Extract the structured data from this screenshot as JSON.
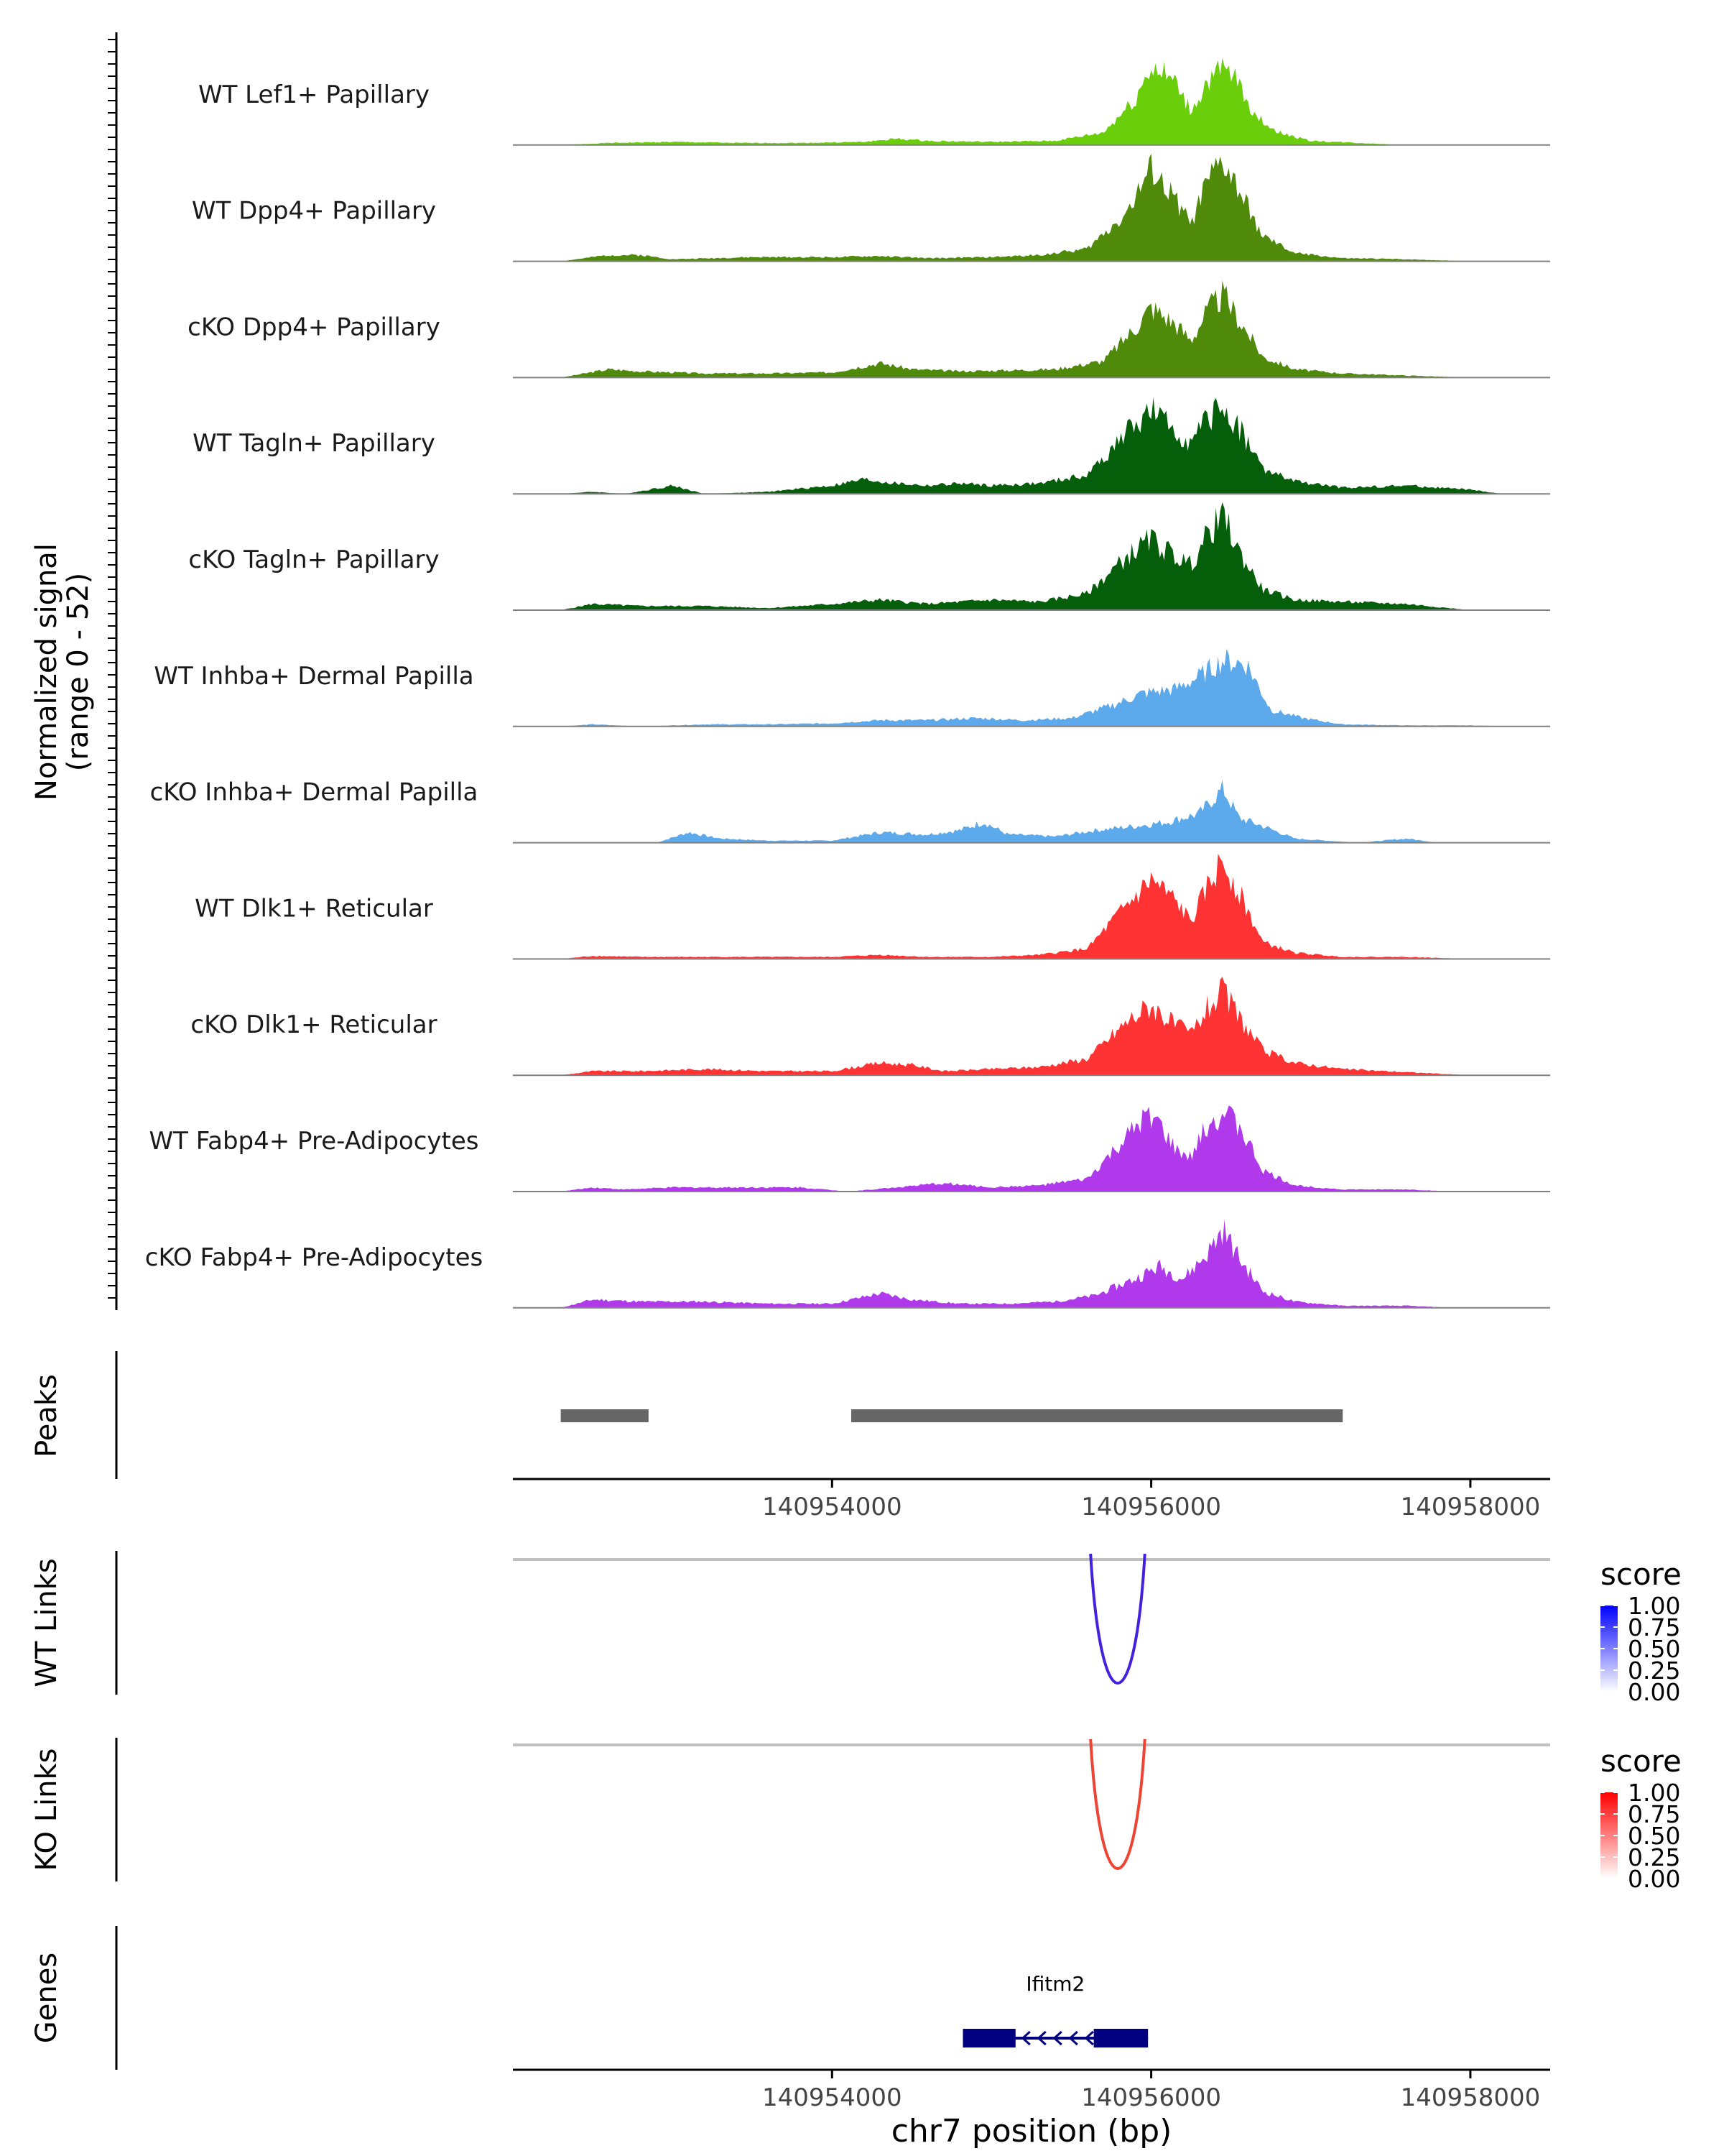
{
  "chart_data": {
    "type": "area",
    "chromosome": "chr7",
    "x_range_bp": [
      140952000,
      140958500
    ],
    "signal_range": [
      0,
      52
    ],
    "coverage_ylabel": [
      "Normalized signal",
      "(range 0 - 52)"
    ],
    "xlabel": "chr7 position (bp)",
    "x_ticks": [
      "140954000",
      "140956000",
      "140958000"
    ],
    "x_tick_values": [
      140954000,
      140956000,
      140958000
    ],
    "tracks": [
      {
        "name": "WT Lef1+ Papillary",
        "color": "#6ACF0A",
        "profile": [
          [
            140952300,
            0
          ],
          [
            140952600,
            1
          ],
          [
            140953000,
            1.5
          ],
          [
            140953400,
            1
          ],
          [
            140953800,
            1
          ],
          [
            140954200,
            1.5
          ],
          [
            140954400,
            3
          ],
          [
            140954600,
            2
          ],
          [
            140955000,
            1.5
          ],
          [
            140955400,
            2
          ],
          [
            140955700,
            6
          ],
          [
            140955900,
            22
          ],
          [
            140956000,
            38
          ],
          [
            140956150,
            30
          ],
          [
            140956250,
            16
          ],
          [
            140956350,
            30
          ],
          [
            140956450,
            36
          ],
          [
            140956550,
            30
          ],
          [
            140956650,
            14
          ],
          [
            140956800,
            6
          ],
          [
            140957000,
            2
          ],
          [
            140957300,
            1
          ],
          [
            140957600,
            0
          ]
        ]
      },
      {
        "name": "WT Dpp4+ Papillary",
        "color": "#4F8A0B",
        "profile": [
          [
            140952300,
            0
          ],
          [
            140952600,
            3
          ],
          [
            140952800,
            3
          ],
          [
            140953000,
            1
          ],
          [
            140953500,
            2
          ],
          [
            140954000,
            2
          ],
          [
            140954300,
            2.5
          ],
          [
            140954600,
            1.5
          ],
          [
            140955000,
            2
          ],
          [
            140955300,
            3
          ],
          [
            140955600,
            6
          ],
          [
            140955850,
            24
          ],
          [
            140956000,
            44
          ],
          [
            140956150,
            30
          ],
          [
            140956250,
            18
          ],
          [
            140956350,
            38
          ],
          [
            140956450,
            48
          ],
          [
            140956550,
            34
          ],
          [
            140956700,
            12
          ],
          [
            140956900,
            4
          ],
          [
            140957200,
            1.5
          ],
          [
            140957600,
            1
          ],
          [
            140958000,
            0
          ]
        ]
      },
      {
        "name": "cKO Dpp4+ Papillary",
        "color": "#4F8A0B",
        "profile": [
          [
            140952300,
            0
          ],
          [
            140952600,
            4
          ],
          [
            140952800,
            3
          ],
          [
            140953200,
            2
          ],
          [
            140953600,
            2
          ],
          [
            140954000,
            2.5
          ],
          [
            140954300,
            7
          ],
          [
            140954500,
            4
          ],
          [
            140954800,
            3
          ],
          [
            140955100,
            3.5
          ],
          [
            140955400,
            4
          ],
          [
            140955700,
            8
          ],
          [
            140955900,
            24
          ],
          [
            140956000,
            34
          ],
          [
            140956150,
            26
          ],
          [
            140956250,
            18
          ],
          [
            140956350,
            32
          ],
          [
            140956450,
            40
          ],
          [
            140956550,
            28
          ],
          [
            140956700,
            10
          ],
          [
            140956900,
            4
          ],
          [
            140957200,
            2
          ],
          [
            140957600,
            1
          ],
          [
            140958000,
            0
          ]
        ]
      },
      {
        "name": "WT Tagln+ Papillary",
        "color": "#055F0A",
        "profile": [
          [
            140952300,
            0
          ],
          [
            140952500,
            1
          ],
          [
            140952700,
            0
          ],
          [
            140953000,
            4
          ],
          [
            140953200,
            0
          ],
          [
            140953600,
            1
          ],
          [
            140954000,
            4
          ],
          [
            140954200,
            7
          ],
          [
            140954400,
            5
          ],
          [
            140954600,
            4
          ],
          [
            140954800,
            5
          ],
          [
            140955000,
            4
          ],
          [
            140955300,
            5
          ],
          [
            140955600,
            9
          ],
          [
            140955850,
            30
          ],
          [
            140956000,
            40
          ],
          [
            140956150,
            30
          ],
          [
            140956250,
            24
          ],
          [
            140956350,
            36
          ],
          [
            140956450,
            42
          ],
          [
            140956550,
            32
          ],
          [
            140956700,
            12
          ],
          [
            140956900,
            6
          ],
          [
            140957200,
            3
          ],
          [
            140957600,
            4
          ],
          [
            140958000,
            2
          ],
          [
            140958200,
            0
          ]
        ]
      },
      {
        "name": "cKO Tagln+ Papillary",
        "color": "#055F0A",
        "profile": [
          [
            140952300,
            0
          ],
          [
            140952500,
            3
          ],
          [
            140952800,
            2
          ],
          [
            140953200,
            2
          ],
          [
            140953600,
            1
          ],
          [
            140954000,
            3
          ],
          [
            140954300,
            5
          ],
          [
            140954600,
            3
          ],
          [
            140955000,
            5
          ],
          [
            140955300,
            4
          ],
          [
            140955600,
            8
          ],
          [
            140955850,
            26
          ],
          [
            140956000,
            34
          ],
          [
            140956150,
            26
          ],
          [
            140956250,
            22
          ],
          [
            140956350,
            36
          ],
          [
            140956450,
            46
          ],
          [
            140956550,
            28
          ],
          [
            140956700,
            10
          ],
          [
            140956900,
            5
          ],
          [
            140957200,
            4
          ],
          [
            140957600,
            3
          ],
          [
            140958000,
            0
          ]
        ]
      },
      {
        "name": "WT Inhba+ Dermal Papilla",
        "color": "#5CAAEB",
        "profile": [
          [
            140952300,
            0
          ],
          [
            140952500,
            1
          ],
          [
            140952800,
            0
          ],
          [
            140953200,
            1
          ],
          [
            140953600,
            1
          ],
          [
            140954000,
            1.5
          ],
          [
            140954300,
            3
          ],
          [
            140954600,
            3
          ],
          [
            140954900,
            4
          ],
          [
            140955200,
            3
          ],
          [
            140955500,
            4
          ],
          [
            140955750,
            10
          ],
          [
            140955950,
            16
          ],
          [
            140956150,
            18
          ],
          [
            140956300,
            24
          ],
          [
            140956450,
            32
          ],
          [
            140956600,
            30
          ],
          [
            140956750,
            8
          ],
          [
            140956950,
            4
          ],
          [
            140957200,
            1
          ],
          [
            140957600,
            0.5
          ],
          [
            140958000,
            0.5
          ],
          [
            140958300,
            0
          ]
        ]
      },
      {
        "name": "cKO Inhba+ Dermal Papilla",
        "color": "#5CAAEB",
        "profile": [
          [
            140952300,
            0
          ],
          [
            140952900,
            0
          ],
          [
            140953100,
            5
          ],
          [
            140953300,
            2
          ],
          [
            140953600,
            1
          ],
          [
            140954000,
            1
          ],
          [
            140954300,
            5
          ],
          [
            140954600,
            4
          ],
          [
            140954800,
            6
          ],
          [
            140954950,
            10
          ],
          [
            140955100,
            4
          ],
          [
            140955400,
            3
          ],
          [
            140955650,
            6
          ],
          [
            140955900,
            8
          ],
          [
            140956100,
            10
          ],
          [
            140956300,
            14
          ],
          [
            140956450,
            26
          ],
          [
            140956550,
            12
          ],
          [
            140956700,
            8
          ],
          [
            140956900,
            2
          ],
          [
            140957300,
            0
          ],
          [
            140957600,
            2
          ],
          [
            140957800,
            0
          ]
        ]
      },
      {
        "name": "WT Dlk1+ Reticular",
        "color": "#FF3333",
        "profile": [
          [
            140952300,
            0
          ],
          [
            140952500,
            1.5
          ],
          [
            140952800,
            1
          ],
          [
            140953200,
            1
          ],
          [
            140953600,
            1
          ],
          [
            140954000,
            1
          ],
          [
            140954300,
            2
          ],
          [
            140954600,
            1
          ],
          [
            140955000,
            1
          ],
          [
            140955300,
            2
          ],
          [
            140955600,
            5
          ],
          [
            140955850,
            26
          ],
          [
            140956000,
            38
          ],
          [
            140956150,
            28
          ],
          [
            140956250,
            18
          ],
          [
            140956350,
            34
          ],
          [
            140956450,
            48
          ],
          [
            140956550,
            32
          ],
          [
            140956700,
            8
          ],
          [
            140956900,
            3
          ],
          [
            140957200,
            1
          ],
          [
            140957600,
            1
          ],
          [
            140958000,
            0
          ]
        ]
      },
      {
        "name": "cKO Dlk1+ Reticular",
        "color": "#FF3333",
        "profile": [
          [
            140952300,
            0
          ],
          [
            140952500,
            2
          ],
          [
            140952800,
            2
          ],
          [
            140953200,
            3
          ],
          [
            140953600,
            2
          ],
          [
            140954000,
            2
          ],
          [
            140954300,
            6
          ],
          [
            140954500,
            5
          ],
          [
            140954700,
            2
          ],
          [
            140955000,
            3
          ],
          [
            140955300,
            4
          ],
          [
            140955600,
            8
          ],
          [
            140955850,
            26
          ],
          [
            140956000,
            34
          ],
          [
            140956150,
            24
          ],
          [
            140956250,
            20
          ],
          [
            140956350,
            32
          ],
          [
            140956450,
            40
          ],
          [
            140956550,
            28
          ],
          [
            140956700,
            12
          ],
          [
            140956900,
            6
          ],
          [
            140957200,
            3
          ],
          [
            140957600,
            1.5
          ],
          [
            140958000,
            0
          ]
        ]
      },
      {
        "name": "WT Fabp4+ Pre-Adipocytes",
        "color": "#B03AEB",
        "profile": [
          [
            140952300,
            0
          ],
          [
            140952500,
            2
          ],
          [
            140952700,
            1
          ],
          [
            140953000,
            2
          ],
          [
            140953400,
            2
          ],
          [
            140953800,
            2
          ],
          [
            140954100,
            0
          ],
          [
            140954400,
            2
          ],
          [
            140954700,
            4
          ],
          [
            140955000,
            2
          ],
          [
            140955300,
            3
          ],
          [
            140955600,
            6
          ],
          [
            140955850,
            26
          ],
          [
            140956000,
            38
          ],
          [
            140956150,
            20
          ],
          [
            140956250,
            16
          ],
          [
            140956350,
            32
          ],
          [
            140956450,
            38
          ],
          [
            140956550,
            32
          ],
          [
            140956700,
            10
          ],
          [
            140956900,
            3
          ],
          [
            140957200,
            1
          ],
          [
            140957600,
            1
          ],
          [
            140957900,
            0
          ]
        ]
      },
      {
        "name": "cKO Fabp4+ Pre-Adipocytes",
        "color": "#B03AEB",
        "profile": [
          [
            140952300,
            0
          ],
          [
            140952500,
            4
          ],
          [
            140952800,
            3
          ],
          [
            140953200,
            3
          ],
          [
            140953600,
            2
          ],
          [
            140954000,
            2
          ],
          [
            140954300,
            7
          ],
          [
            140954500,
            4
          ],
          [
            140954800,
            2
          ],
          [
            140955100,
            2
          ],
          [
            140955400,
            3
          ],
          [
            140955650,
            6
          ],
          [
            140955900,
            14
          ],
          [
            140956050,
            20
          ],
          [
            140956200,
            14
          ],
          [
            140956350,
            26
          ],
          [
            140956450,
            38
          ],
          [
            140956550,
            24
          ],
          [
            140956700,
            8
          ],
          [
            140956900,
            3
          ],
          [
            140957200,
            1
          ],
          [
            140957600,
            1
          ],
          [
            140957900,
            0
          ]
        ]
      }
    ],
    "peaks": {
      "label": "Peaks",
      "color": "#666666",
      "regions": [
        [
          140952300,
          140952850
        ],
        [
          140954120,
          140957200
        ]
      ]
    },
    "links": [
      {
        "label": "WT Links",
        "color": "#4422DD",
        "start_bp": 140955620,
        "end_bp": 140955960,
        "score": 0.8,
        "legend_title": "score",
        "legend_low": "#FFFFFF",
        "legend_high": "#0000FF"
      },
      {
        "label": "KO Links",
        "color": "#EE4433",
        "start_bp": 140955620,
        "end_bp": 140955960,
        "score": 0.7,
        "legend_title": "score",
        "legend_low": "#FFFFFF",
        "legend_high": "#FF0000"
      }
    ],
    "legend_ticks": [
      "1.00",
      "0.75",
      "0.50",
      "0.25",
      "0.00"
    ],
    "genes": {
      "label": "Genes",
      "color": "#000080",
      "items": [
        {
          "name": "Ifitm2",
          "start_bp": 140954820,
          "end_bp": 140955980,
          "strand": "-",
          "exons": [
            [
              140954820,
              140955150
            ],
            [
              140955640,
              140955980
            ]
          ]
        }
      ]
    }
  }
}
